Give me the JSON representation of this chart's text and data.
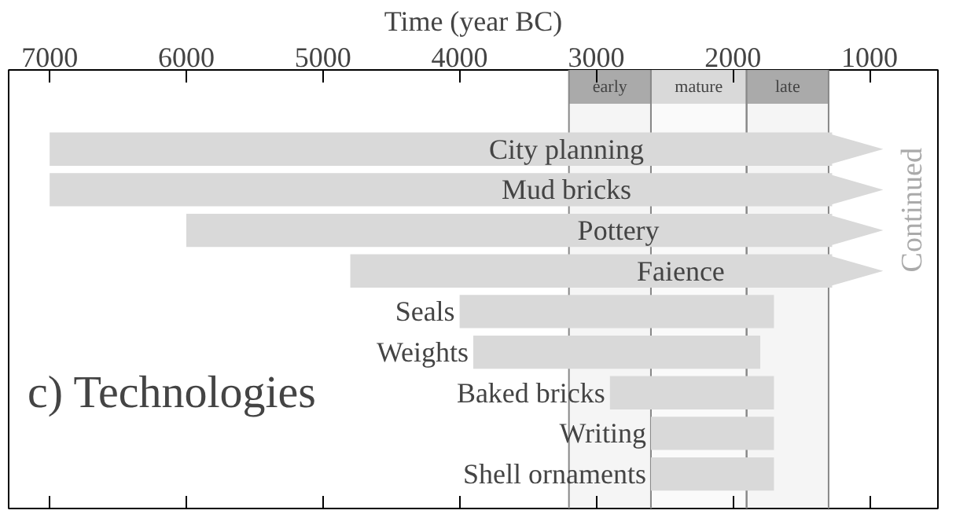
{
  "chart_data": {
    "type": "bar",
    "orientation": "horizontal",
    "title": "c) Technologies",
    "xlabel": "Time (year BC)",
    "categories": [
      "City planning",
      "Mud bricks",
      "Pottery",
      "Faience",
      "Seals",
      "Weights",
      "Baked bricks",
      "Writing",
      "Shell ornaments"
    ],
    "base": [
      900,
      900,
      900,
      900,
      1700,
      1800,
      1700,
      1700,
      1700
    ],
    "values": [
      6100,
      6100,
      5100,
      3900,
      2300,
      2100,
      1200,
      900,
      900
    ],
    "color": "#d9d9d9",
    "xlim": [
      7300,
      500
    ],
    "xticks": [
      7000,
      6000,
      5000,
      4000,
      3000,
      2000,
      1000
    ],
    "bands": [
      {
        "axis": "x",
        "from": 3200,
        "to": 2600,
        "label": "early",
        "color": "#aaaaaa"
      },
      {
        "axis": "x",
        "from": 2600,
        "to": 1900,
        "label": "mature",
        "color": "#d9d9d9"
      },
      {
        "axis": "x",
        "from": 1900,
        "to": 1300,
        "label": "late",
        "color": "#aaaaaa"
      }
    ],
    "annotations": [
      "Continued"
    ],
    "tick_labels": "x",
    "grid": false
  }
}
